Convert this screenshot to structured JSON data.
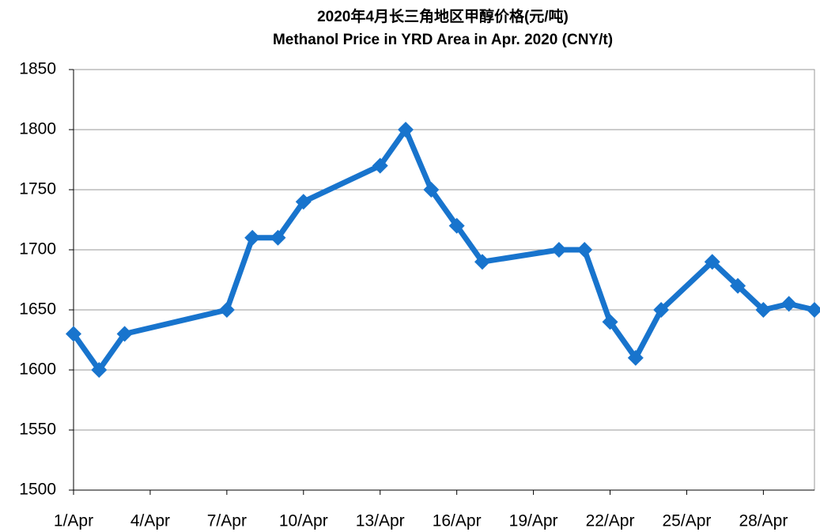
{
  "chart_data": {
    "type": "line",
    "title": "2020年4月长三角地区甲醇价格(元/吨)",
    "subtitle": "Methanol Price in YRD Area in Apr. 2020 (CNY/t)",
    "x": [
      1,
      2,
      3,
      7,
      8,
      9,
      10,
      13,
      14,
      15,
      16,
      17,
      20,
      21,
      22,
      23,
      24,
      26,
      27,
      28,
      29,
      30
    ],
    "values": [
      1630,
      1600,
      1630,
      1650,
      1710,
      1710,
      1740,
      1770,
      1800,
      1750,
      1720,
      1690,
      1700,
      1700,
      1640,
      1610,
      1650,
      1690,
      1670,
      1650,
      1655,
      1650
    ],
    "color": "#1874cd",
    "xlim": [
      1,
      30
    ],
    "xticks": [
      {
        "value": 1,
        "label": "1/Apr"
      },
      {
        "value": 4,
        "label": "4/Apr"
      },
      {
        "value": 7,
        "label": "7/Apr"
      },
      {
        "value": 10,
        "label": "10/Apr"
      },
      {
        "value": 13,
        "label": "13/Apr"
      },
      {
        "value": 16,
        "label": "16/Apr"
      },
      {
        "value": 19,
        "label": "19/Apr"
      },
      {
        "value": 22,
        "label": "22/Apr"
      },
      {
        "value": 25,
        "label": "25/Apr"
      },
      {
        "value": 28,
        "label": "28/Apr"
      }
    ],
    "ylim": [
      1500,
      1850
    ],
    "yticks": [
      1500,
      1550,
      1600,
      1650,
      1700,
      1750,
      1800,
      1850
    ],
    "grid": true
  }
}
